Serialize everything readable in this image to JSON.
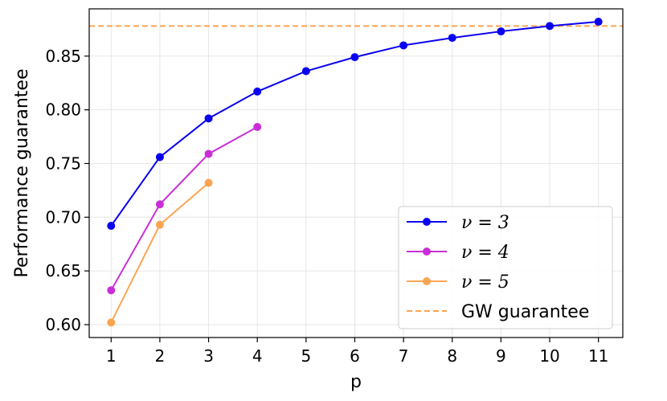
{
  "chart_data": {
    "type": "line",
    "xlabel": "p",
    "ylabel": "Performance guarantee",
    "xlim": [
      0.55,
      11.5
    ],
    "ylim": [
      0.588,
      0.894
    ],
    "xticks": [
      "1",
      "2",
      "3",
      "4",
      "5",
      "6",
      "7",
      "8",
      "9",
      "10",
      "11"
    ],
    "yticks": [
      "0.60",
      "0.65",
      "0.70",
      "0.75",
      "0.80",
      "0.85"
    ],
    "ytick_values": [
      0.6,
      0.65,
      0.7,
      0.75,
      0.8,
      0.85
    ],
    "grid": true,
    "legend_position": "lower-right",
    "series": [
      {
        "name": "ν = 3",
        "color": "#0a00f0",
        "marker": "circle",
        "x": [
          1,
          2,
          3,
          4,
          5,
          6,
          7,
          8,
          9,
          10,
          11
        ],
        "y": [
          0.692,
          0.756,
          0.792,
          0.817,
          0.836,
          0.849,
          0.86,
          0.867,
          0.873,
          0.878,
          0.882
        ]
      },
      {
        "name": "ν = 4",
        "color": "#c92fd6",
        "marker": "circle",
        "x": [
          1,
          2,
          3,
          4
        ],
        "y": [
          0.632,
          0.712,
          0.759,
          0.784
        ]
      },
      {
        "name": "ν = 5",
        "color": "#fba552",
        "marker": "circle",
        "x": [
          1,
          2,
          3
        ],
        "y": [
          0.602,
          0.693,
          0.732
        ]
      }
    ],
    "reference_lines": [
      {
        "name": "GW guarantee",
        "y": 0.878,
        "color": "#fba552",
        "style": "dashed"
      }
    ]
  }
}
